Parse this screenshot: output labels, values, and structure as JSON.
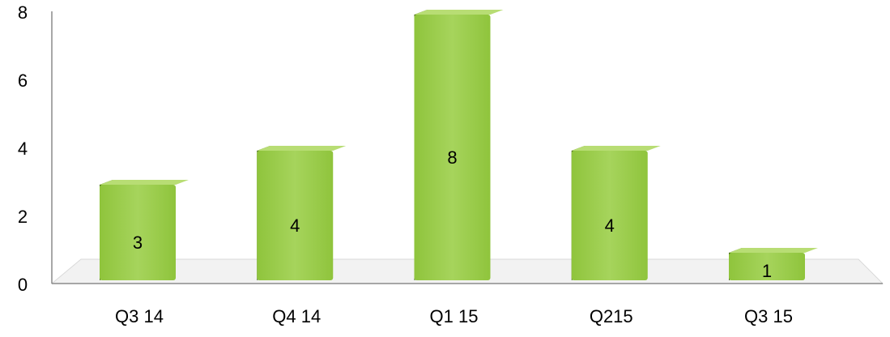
{
  "chart_data": {
    "type": "bar",
    "categories": [
      "Q3 14",
      "Q4 14",
      "Q1 15",
      "Q215",
      "Q3 15"
    ],
    "values": [
      3,
      4,
      8,
      4,
      1
    ],
    "data_labels": [
      "3",
      "4",
      "8",
      "4",
      "1"
    ],
    "y_ticks": [
      "0",
      "2",
      "4",
      "6",
      "8"
    ],
    "ylim": [
      0,
      8
    ],
    "grid": false,
    "legend": "none",
    "style": "3d",
    "colors": {
      "bar_front": "#9bcb4a",
      "bar_side": "#567a1e",
      "bar_top": "#b8dd74",
      "axis": "#8c8c8c",
      "floor": "#f2f2f2",
      "text": "#000000"
    }
  }
}
